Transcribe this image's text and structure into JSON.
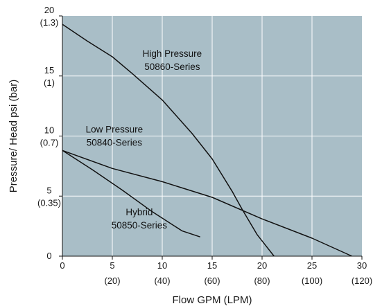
{
  "chart_data": {
    "type": "line",
    "title": "",
    "xlabel": "Flow GPM (LPM)",
    "ylabel": "Pressure/ Head psi (bar)",
    "xlim": [
      0,
      30
    ],
    "ylim": [
      0,
      20
    ],
    "grid": true,
    "x_ticks": [
      {
        "value": 0,
        "label": "0",
        "sublabel": ""
      },
      {
        "value": 5,
        "label": "5",
        "sublabel": "(20)"
      },
      {
        "value": 10,
        "label": "10",
        "sublabel": "(40)"
      },
      {
        "value": 15,
        "label": "15",
        "sublabel": "(60)"
      },
      {
        "value": 20,
        "label": "20",
        "sublabel": "(80)"
      },
      {
        "value": 25,
        "label": "25",
        "sublabel": "(100)"
      },
      {
        "value": 30,
        "label": "30",
        "sublabel": "(120)"
      }
    ],
    "y_ticks": [
      {
        "value": 0,
        "label": "0",
        "sublabel": ""
      },
      {
        "value": 5,
        "label": "5",
        "sublabel": "(0.35)"
      },
      {
        "value": 10,
        "label": "10",
        "sublabel": "(0.7)"
      },
      {
        "value": 15,
        "label": "15",
        "sublabel": "(1)"
      },
      {
        "value": 20,
        "label": "20",
        "sublabel": "(1.3)"
      }
    ],
    "series": [
      {
        "label_line1": "High Pressure",
        "label_line2": "50860-Series",
        "label_at": [
          11,
          16.6
        ],
        "points": [
          [
            0,
            19.3
          ],
          [
            2.5,
            17.9
          ],
          [
            5,
            16.6
          ],
          [
            7,
            15.2
          ],
          [
            10,
            13
          ],
          [
            13,
            10.2
          ],
          [
            15,
            8.1
          ],
          [
            17,
            5.4
          ],
          [
            18,
            3.9
          ],
          [
            19.5,
            1.8
          ],
          [
            21.2,
            0
          ]
        ]
      },
      {
        "label_line1": "Low Pressure",
        "label_line2": "50840-Series",
        "label_at": [
          5.2,
          10.3
        ],
        "points": [
          [
            0,
            8.8
          ],
          [
            5,
            7.3
          ],
          [
            10,
            6.2
          ],
          [
            15,
            4.9
          ],
          [
            20,
            3.1
          ],
          [
            25,
            1.5
          ],
          [
            29,
            0
          ]
        ]
      },
      {
        "label_line1": "Hybrid",
        "label_line2": "50850-Series",
        "label_at": [
          7.7,
          3.4
        ],
        "points": [
          [
            0,
            8.8
          ],
          [
            3,
            7.2
          ],
          [
            6,
            5.5
          ],
          [
            9,
            3.7
          ],
          [
            12,
            2.1
          ],
          [
            13.8,
            1.6
          ]
        ]
      }
    ]
  },
  "colors": {
    "plot_background": "#a9bec7",
    "grid": "#ffffff",
    "line": "#111111",
    "text": "#1a1a1a"
  }
}
